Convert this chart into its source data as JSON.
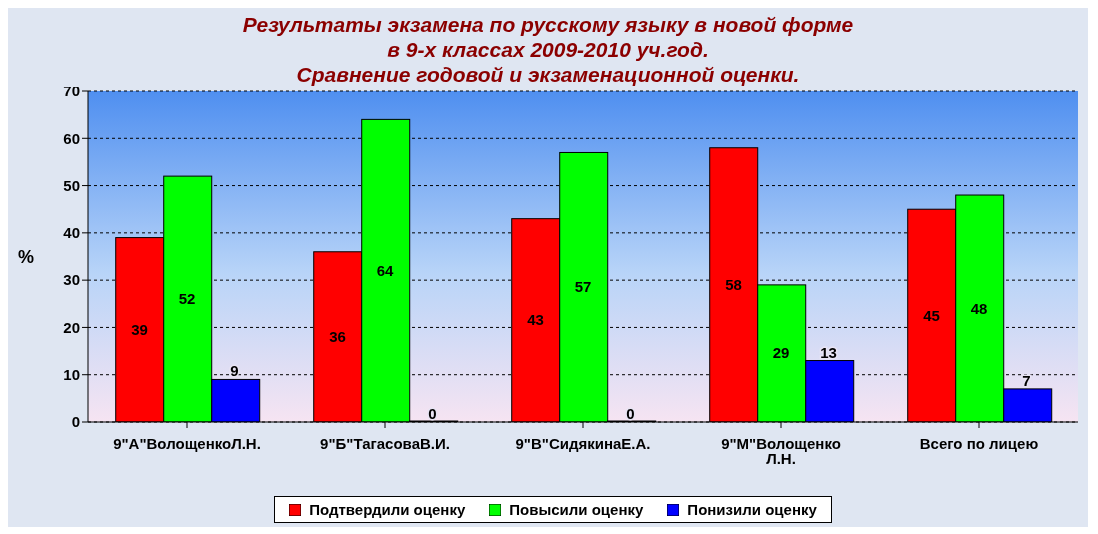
{
  "chart_data": {
    "type": "bar",
    "title": "Результаты экзамена по русскому языку в новой форме\nв 9-х классах 2009-2010 уч.год.\nСравнение годовой и экзаменационной оценки.",
    "categories": [
      "9\"А\"ВолощенкоЛ.Н.",
      "9\"Б\"ТагасоваВ.И.",
      "9\"В\"СидякинаЕ.А.",
      "9\"М\"Волощенко Л.Н.",
      "Всего по лицею"
    ],
    "series": [
      {
        "name": "Подтвердили оценку",
        "color": "#ff0000",
        "values": [
          39,
          36,
          43,
          58,
          45
        ]
      },
      {
        "name": "Повысили оценку",
        "color": "#00ff00",
        "values": [
          52,
          64,
          57,
          29,
          48
        ]
      },
      {
        "name": "Понизили оценку",
        "color": "#0000ff",
        "values": [
          9,
          0,
          0,
          13,
          7
        ]
      }
    ],
    "ylabel": "%",
    "ylim": [
      0,
      70
    ],
    "yticks": [
      0,
      10,
      20,
      30,
      40,
      50,
      60,
      70
    ],
    "grid": "y",
    "legend": "bottom",
    "data_labels": true
  }
}
